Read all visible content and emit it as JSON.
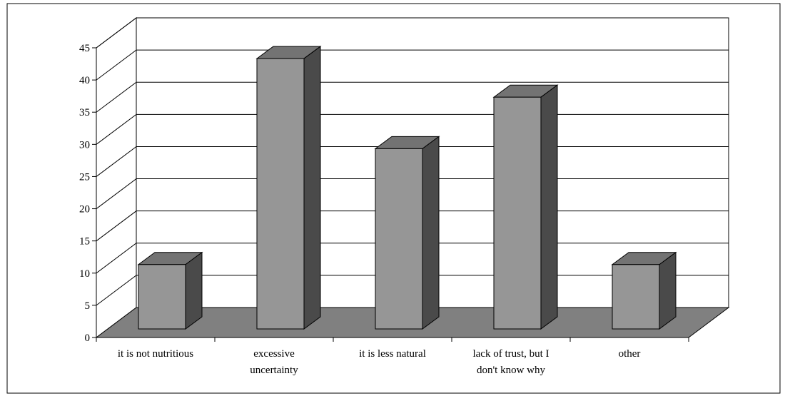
{
  "chart_data": {
    "type": "bar",
    "title": "",
    "xlabel": "",
    "ylabel": "",
    "categories": [
      [
        "it is not nutritious"
      ],
      [
        "excessive",
        "uncertainty"
      ],
      [
        "it is less natural"
      ],
      [
        "lack of trust, but I",
        "don't know why"
      ],
      [
        "other"
      ]
    ],
    "values": [
      10,
      42,
      28,
      36,
      10
    ],
    "ylim": [
      0,
      45
    ],
    "yticks": [
      "0",
      "5",
      "10",
      "15",
      "20",
      "25",
      "30",
      "35",
      "40",
      "45"
    ],
    "grid": true,
    "legend": "none",
    "style": "3d-column"
  },
  "colors": {
    "bar_front": "#969696",
    "bar_top": "#737373",
    "bar_side": "#4a4a4a",
    "floor": "#808080",
    "back_wall": "#ffffff",
    "side_wall": "#ffffff",
    "grid": "#000000",
    "frame": "#000000"
  }
}
